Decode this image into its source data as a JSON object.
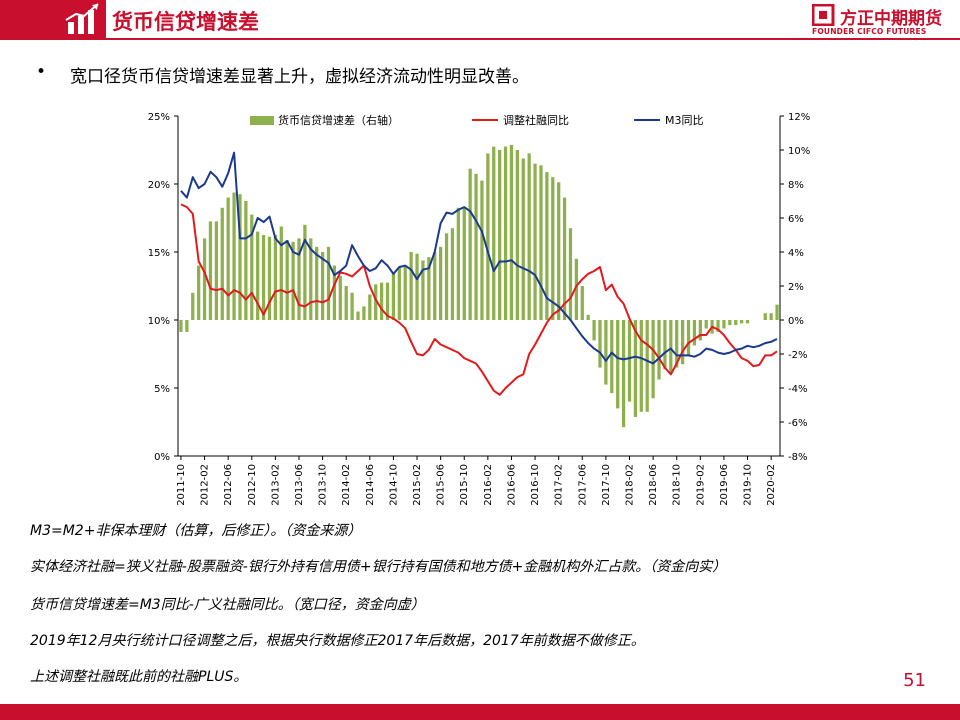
{
  "header": {
    "title": "货币信贷增速差",
    "logo_cn": "方正中期期货",
    "logo_en": "FOUNDER CIFCO FUTURES",
    "accent_color": "#c8102e"
  },
  "bullet": {
    "text": "宽口径货币信贷增速差显著上升，虚拟经济流动性明显改善。"
  },
  "notes": [
    "M3=M2+非保本理财（估算，后修正）。（资金来源）",
    "实体经济社融=狭义社融-股票融资-银行外持有信用债+银行持有国债和地方债+金融机构外汇占款。（资金向实）",
    "货币信贷增速差=M3同比-广义社融同比。（宽口径，资金向虚）",
    "2019年12月央行统计口径调整之后，根据央行数据修正2017年后数据，2017年前数据不做修正。",
    "上述调整社融既此前的社融PLUS。"
  ],
  "page_number": "51",
  "chart_data": {
    "type": "bar+line",
    "legend": {
      "bar": "货币信贷增速差（右轴）",
      "red": "调整社融同比",
      "blue": "M3同比",
      "placement": "top"
    },
    "left_axis": {
      "ylim": [
        0,
        25
      ],
      "ticks": [
        "0%",
        "5%",
        "10%",
        "15%",
        "20%",
        "25%"
      ]
    },
    "right_axis": {
      "ylim": [
        -8,
        12
      ],
      "ticks": [
        "-8%",
        "-6%",
        "-4%",
        "-2%",
        "0%",
        "2%",
        "4%",
        "6%",
        "8%",
        "10%",
        "12%"
      ]
    },
    "x_tick_labels": [
      "2011-10",
      "2012-02",
      "2012-06",
      "2012-10",
      "2013-02",
      "2013-06",
      "2013-10",
      "2014-02",
      "2014-06",
      "2014-10",
      "2015-02",
      "2015-06",
      "2015-10",
      "2016-02",
      "2016-06",
      "2016-10",
      "2017-02",
      "2017-06",
      "2017-10",
      "2018-02",
      "2018-06",
      "2018-10",
      "2019-02",
      "2019-06",
      "2019-10",
      "2020-02"
    ],
    "start_month": "2011-10",
    "colors": {
      "bar": "#8db04c",
      "red": "#e31a1c",
      "blue": "#1b3a8c"
    },
    "months_count": 102,
    "spread_right": [
      -0.7,
      -0.7,
      1.6,
      3.2,
      4.8,
      5.8,
      5.8,
      6.6,
      7.2,
      7.5,
      7.4,
      7.0,
      6.2,
      5.2,
      5.0,
      4.9,
      5.0,
      5.5,
      4.7,
      4.6,
      4.8,
      5.6,
      4.8,
      4.3,
      4.0,
      4.3,
      3.2,
      2.6,
      2.0,
      1.6,
      0.5,
      0.8,
      1.5,
      2.1,
      2.2,
      2.2,
      2.8,
      3.1,
      3.2,
      4.0,
      3.9,
      3.5,
      3.7,
      4.0,
      4.3,
      5.1,
      5.4,
      6.6,
      6.6,
      8.9,
      8.6,
      8.2,
      9.8,
      10.2,
      10.0,
      10.2,
      10.3,
      10.0,
      9.5,
      9.8,
      9.2,
      9.1,
      8.7,
      8.4,
      8.1,
      7.2,
      5.4,
      3.6,
      2.0,
      0.3,
      -1.2,
      -2.8,
      -3.8,
      -4.3,
      -5.2,
      -6.3,
      -4.8,
      -5.7,
      -5.4,
      -5.4,
      -4.6,
      -3.5,
      -2.9,
      -3.1,
      -2.8,
      -2.6,
      -2.1,
      -1.5,
      -1.2,
      -0.5,
      -0.8,
      -0.7,
      -0.5,
      -0.3,
      -0.3,
      -0.2,
      -0.2,
      0.0,
      0.0,
      0.4,
      0.4,
      0.9
    ],
    "red_left": [
      18.5,
      18.3,
      17.8,
      14.3,
      13.5,
      12.3,
      12.2,
      12.3,
      11.8,
      12.2,
      12.0,
      11.5,
      12.0,
      11.2,
      10.4,
      11.3,
      12.1,
      12.2,
      12.0,
      12.2,
      11.1,
      11.0,
      11.3,
      11.4,
      11.3,
      11.5,
      12.6,
      13.5,
      13.4,
      13.2,
      13.6,
      14.0,
      12.5,
      11.5,
      10.8,
      10.3,
      10.1,
      9.8,
      9.4,
      8.4,
      7.5,
      7.4,
      7.8,
      8.6,
      8.2,
      8.0,
      7.8,
      7.6,
      7.2,
      7.0,
      6.8,
      6.2,
      5.5,
      4.8,
      4.5,
      5.0,
      5.4,
      5.8,
      6.0,
      7.5,
      8.2,
      9.0,
      9.8,
      10.4,
      10.7,
      11.2,
      11.6,
      12.5,
      13.0,
      13.4,
      13.6,
      13.9,
      12.2,
      12.6,
      11.7,
      11.2,
      10.1,
      9.2,
      8.5,
      8.2,
      7.8,
      7.2,
      6.5,
      6.0,
      6.8,
      7.7,
      8.3,
      8.6,
      8.9,
      8.9,
      9.5,
      9.3,
      8.9,
      8.3,
      7.8,
      7.2,
      7.0,
      6.6,
      6.7,
      7.4,
      7.4,
      7.7
    ],
    "blue_left": [
      19.5,
      19.0,
      20.5,
      19.7,
      20.0,
      20.9,
      20.5,
      19.8,
      20.8,
      22.3,
      16.0,
      16.0,
      16.3,
      17.5,
      17.2,
      17.6,
      16.0,
      15.5,
      15.8,
      15.0,
      14.8,
      15.9,
      15.2,
      14.8,
      14.5,
      14.2,
      13.3,
      13.6,
      14.0,
      15.5,
      14.7,
      14.0,
      13.6,
      13.8,
      14.4,
      14.0,
      13.4,
      13.9,
      14.0,
      13.7,
      13.0,
      13.7,
      13.8,
      15.0,
      17.1,
      17.9,
      17.8,
      18.1,
      18.3,
      18.0,
      17.3,
      16.5,
      15.0,
      13.6,
      14.3,
      14.3,
      14.4,
      14.0,
      13.8,
      13.6,
      13.3,
      12.5,
      11.6,
      11.3,
      11.0,
      10.5,
      10.0,
      9.4,
      8.8,
      8.3,
      7.9,
      7.6,
      7.0,
      7.6,
      7.2,
      7.1,
      7.2,
      7.3,
      7.2,
      7.0,
      6.8,
      7.2,
      7.6,
      7.9,
      7.4,
      7.4,
      7.4,
      7.3,
      7.5,
      7.9,
      7.8,
      7.6,
      7.5,
      7.6,
      7.8,
      7.9,
      8.1,
      8.0,
      8.1,
      8.3,
      8.4,
      8.6
    ]
  }
}
